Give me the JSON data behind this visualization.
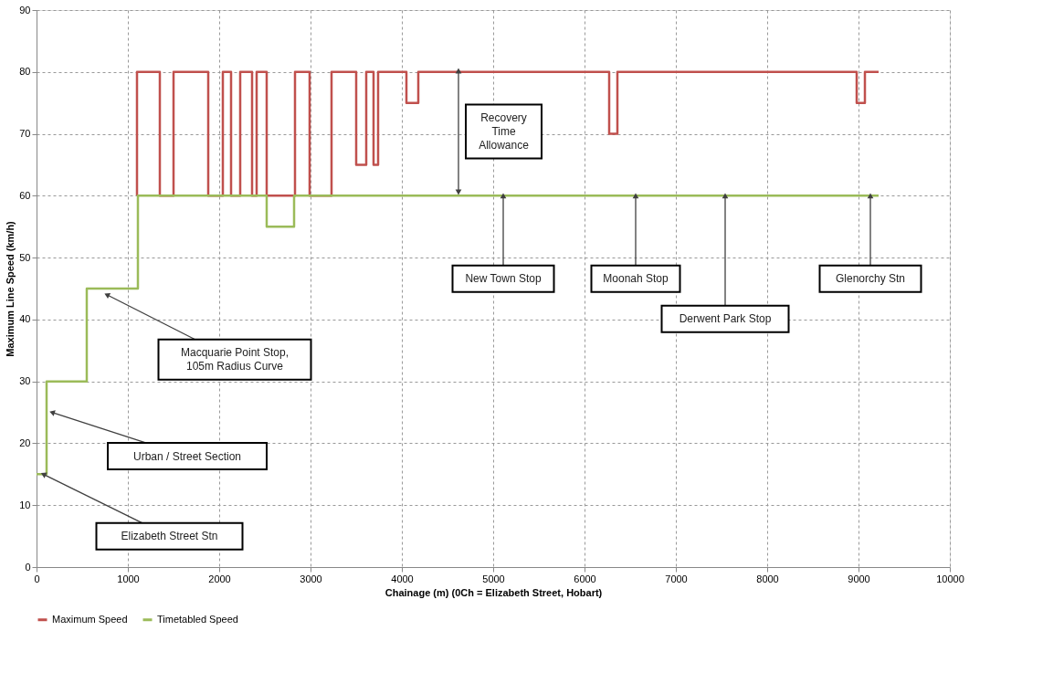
{
  "chart_data": {
    "type": "step",
    "xlabel": "Chainage  (m) (0Ch = Elizabeth Street, Hobart)",
    "ylabel": "Maximum Line Speed (km/h)",
    "xlim": [
      0,
      10000
    ],
    "xticks": [
      0,
      1000,
      2000,
      3000,
      4000,
      5000,
      6000,
      7000,
      8000,
      9000,
      10000
    ],
    "ylim": [
      0,
      90
    ],
    "yticks": [
      0,
      10,
      20,
      30,
      40,
      50,
      60,
      70,
      80,
      90
    ],
    "grid": true,
    "legend": "bottom",
    "line_style": "solid",
    "marker": "none",
    "series": [
      {
        "name": "Maximum Speed",
        "color": "#c0504d",
        "x": [
          1100,
          1100,
          1350,
          1500,
          1880,
          2040,
          2130,
          2230,
          2360,
          2410,
          2520,
          2830,
          2990,
          3230,
          3500,
          3610,
          3690,
          3740,
          4050,
          4180,
          6270,
          6360,
          8980,
          9070,
          9220
        ],
        "values": [
          60,
          80,
          60,
          80,
          60,
          80,
          60,
          80,
          60,
          80,
          60,
          80,
          60,
          80,
          65,
          80,
          65,
          80,
          75,
          80,
          70,
          80,
          75,
          80,
          80
        ]
      },
      {
        "name": "Timetabled Speed",
        "color": "#9bbb59",
        "x": [
          0,
          110,
          550,
          1110,
          2520,
          2820,
          9220
        ],
        "values": [
          15,
          30,
          45,
          60,
          55,
          60,
          60
        ]
      }
    ],
    "annotations": [
      {
        "text": "Elizabeth Street Stn",
        "x": 75,
        "y": 15
      },
      {
        "text": "Urban / Street Section",
        "x": 170,
        "y": 25
      },
      {
        "text": "Macquarie Point Stop,\n105m Radius Curve",
        "x": 770,
        "y": 44
      },
      {
        "text": "New Town Stop",
        "x": 5110,
        "y": 60
      },
      {
        "text": "Moonah Stop",
        "x": 6560,
        "y": 60
      },
      {
        "text": "Derwent Park Stop",
        "x": 7540,
        "y": 60
      },
      {
        "text": "Glenorchy Stn",
        "x": 9130,
        "y": 60
      },
      "Recovery\nTime\nAllowance"
    ]
  }
}
